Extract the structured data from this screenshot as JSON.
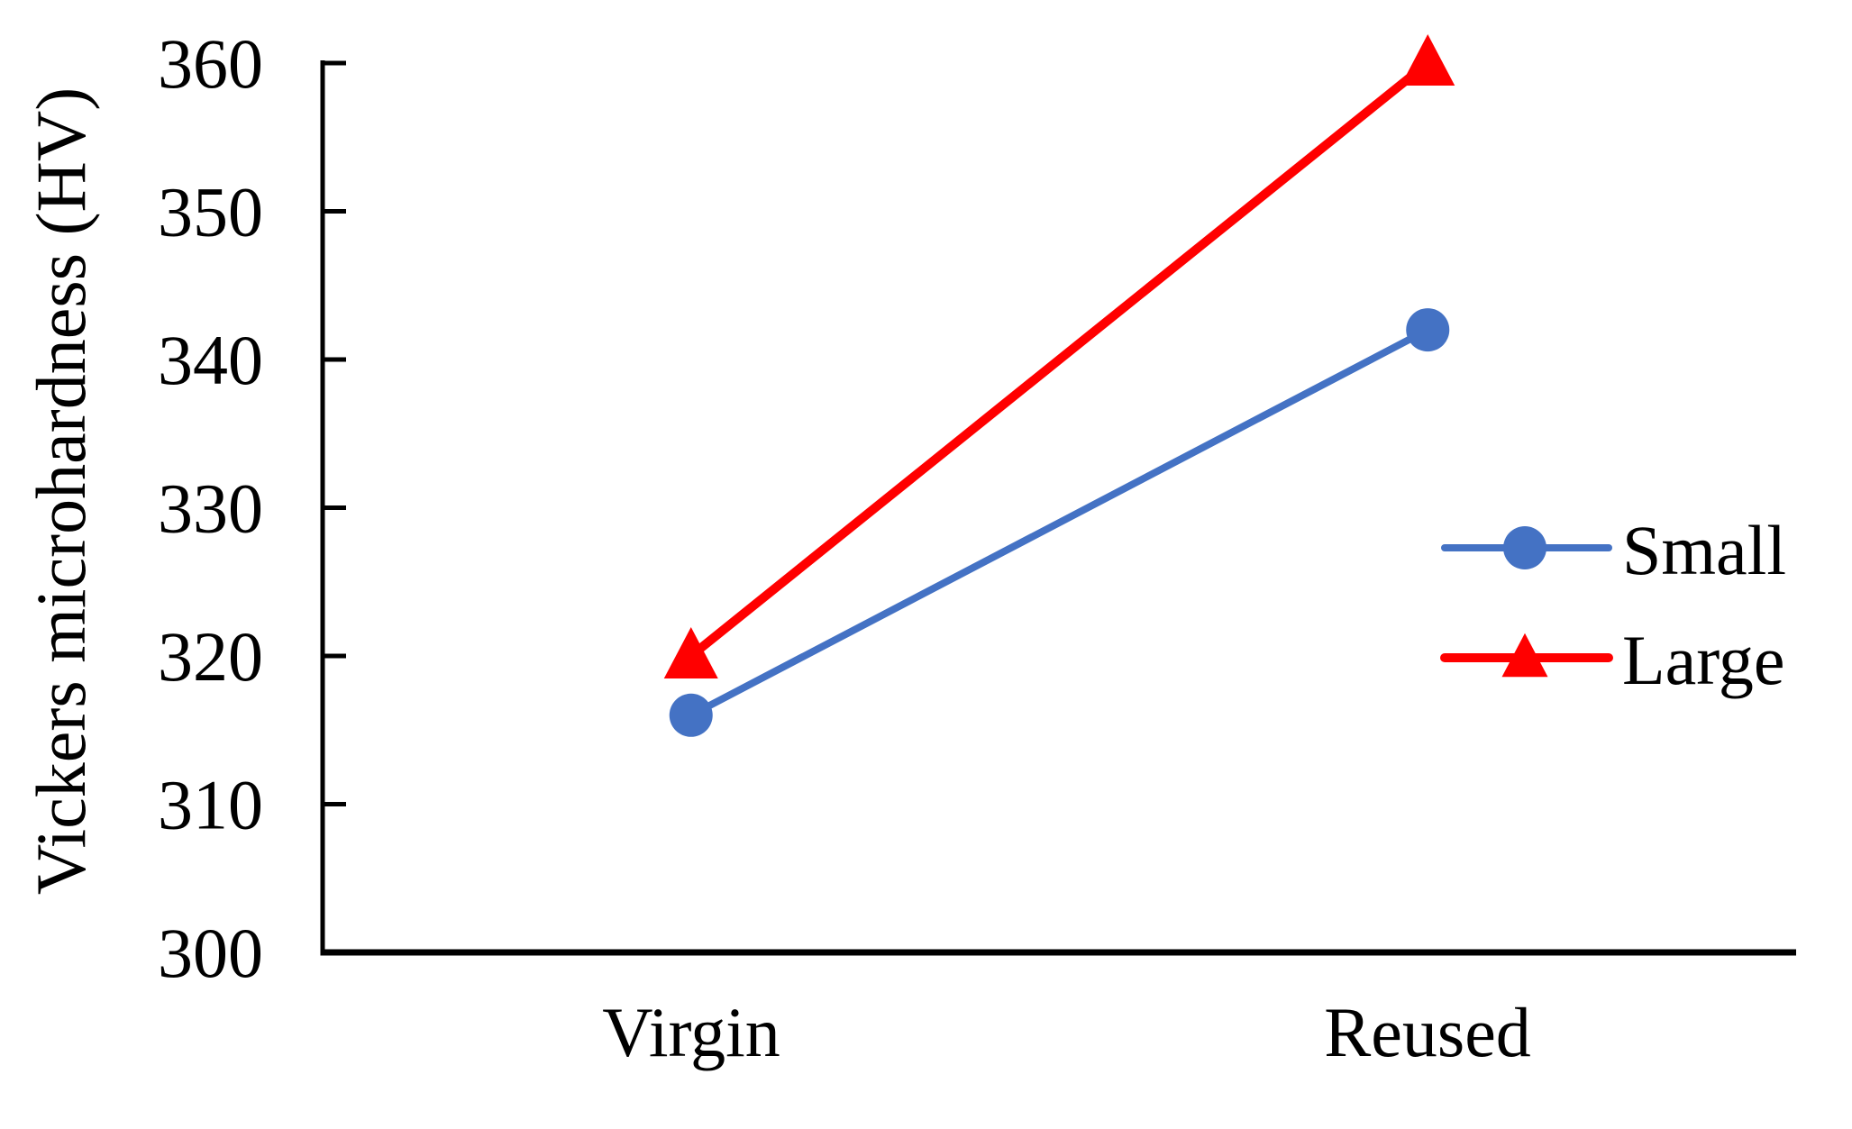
{
  "chart_data": {
    "type": "line",
    "title": "",
    "categories": [
      "Virgin",
      "Reused"
    ],
    "series": [
      {
        "name": "Small",
        "color": "#4472C4",
        "marker": "circle",
        "line_width": 8,
        "values": [
          316,
          342
        ]
      },
      {
        "name": "Large",
        "color": "#FF0000",
        "marker": "triangle",
        "line_width": 10,
        "values": [
          320,
          360
        ]
      }
    ],
    "xlabel": "",
    "ylabel": "Vickers microhardness (HV)",
    "ylim": [
      300,
      360
    ],
    "ytick_step": 10,
    "grid": false,
    "legend_position": "middle-right",
    "axis_color": "#000000",
    "text_color": "#000000"
  }
}
